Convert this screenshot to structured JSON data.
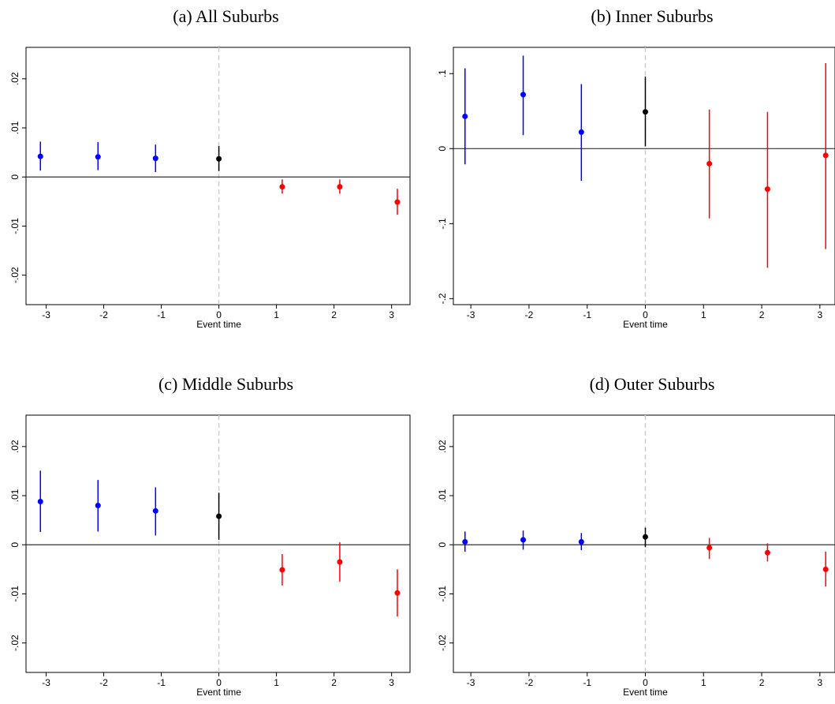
{
  "chart_data": [
    {
      "type": "errorbar",
      "title": "(a) All Suburbs",
      "x_label": "Event time",
      "x": [
        -3.1,
        -2.1,
        -1.1,
        0,
        1.1,
        2.1,
        3.1
      ],
      "values": [
        0.0042,
        0.0041,
        0.0038,
        0.0037,
        -0.002,
        -0.002,
        -0.0051
      ],
      "ci_low": [
        0.0013,
        0.0014,
        0.001,
        0.0012,
        -0.0034,
        -0.0034,
        -0.0077
      ],
      "ci_high": [
        0.0072,
        0.0071,
        0.0066,
        0.0063,
        -0.0005,
        -0.0005,
        -0.0024
      ],
      "colors": [
        "#0000ff",
        "#0000ff",
        "#0000ff",
        "#000000",
        "#ff0000",
        "#ff0000",
        "#ff0000"
      ],
      "xlim": [
        -3.35,
        3.32
      ],
      "xticks": [
        -3,
        -2,
        -1,
        0,
        1,
        2,
        3
      ],
      "ylim": [
        -0.026,
        0.0264
      ],
      "yticks": [
        {
          "value": -0.02,
          "label": "-.02"
        },
        {
          "value": -0.01,
          "label": "-.01"
        },
        0,
        {
          "value": 0.01,
          "label": ".01"
        },
        {
          "value": 0.02,
          "label": ".02"
        }
      ],
      "hline": 0,
      "vline": 0
    },
    {
      "type": "errorbar",
      "title": "(b) Inner Suburbs",
      "x_label": "Event time",
      "x": [
        -3.1,
        -2.1,
        -1.1,
        0,
        1.1,
        2.1,
        3.1
      ],
      "values": [
        0.043,
        0.072,
        0.022,
        0.049,
        -0.02,
        -0.054,
        -0.009
      ],
      "ci_low": [
        -0.021,
        0.018,
        -0.043,
        0.003,
        -0.093,
        -0.159,
        -0.134
      ],
      "ci_high": [
        0.107,
        0.124,
        0.086,
        0.096,
        0.052,
        0.049,
        0.114
      ],
      "colors": [
        "#0000ff",
        "#0000ff",
        "#0000ff",
        "#000000",
        "#ff0000",
        "#ff0000",
        "#ff0000"
      ],
      "xlim": [
        -3.3,
        3.26
      ],
      "xticks": [
        -3,
        -2,
        -1,
        0,
        1,
        2,
        3
      ],
      "ylim": [
        -0.208,
        0.135
      ],
      "yticks": [
        {
          "value": -0.2,
          "label": "-.2"
        },
        {
          "value": -0.1,
          "label": "-.1"
        },
        0,
        {
          "value": 0.1,
          "label": ".1"
        }
      ],
      "hline": 0,
      "vline": 0
    },
    {
      "type": "errorbar",
      "title": "(c) Middle Suburbs",
      "x_label": "Event time",
      "x": [
        -3.1,
        -2.1,
        -1.1,
        0,
        1.1,
        2.1,
        3.1
      ],
      "values": [
        0.0088,
        0.008,
        0.0069,
        0.0058,
        -0.0051,
        -0.0035,
        -0.0098
      ],
      "ci_low": [
        0.0026,
        0.0027,
        0.0019,
        0.001,
        -0.0083,
        -0.0075,
        -0.0146
      ],
      "ci_high": [
        0.0151,
        0.0132,
        0.0117,
        0.0106,
        -0.0019,
        0.0005,
        -0.005
      ],
      "colors": [
        "#0000ff",
        "#0000ff",
        "#0000ff",
        "#000000",
        "#ff0000",
        "#ff0000",
        "#ff0000"
      ],
      "xlim": [
        -3.35,
        3.32
      ],
      "xticks": [
        -3,
        -2,
        -1,
        0,
        1,
        2,
        3
      ],
      "ylim": [
        -0.026,
        0.0264
      ],
      "yticks": [
        {
          "value": -0.02,
          "label": "-.02"
        },
        {
          "value": -0.01,
          "label": "-.01"
        },
        0,
        {
          "value": 0.01,
          "label": ".01"
        },
        {
          "value": 0.02,
          "label": ".02"
        }
      ],
      "hline": 0,
      "vline": 0
    },
    {
      "type": "errorbar",
      "title": "(d) Outer Suburbs",
      "x_label": "Event time",
      "x": [
        -3.1,
        -2.1,
        -1.1,
        0,
        1.1,
        2.1,
        3.1
      ],
      "values": [
        0.0006,
        0.001,
        0.0006,
        0.0016,
        -0.0006,
        -0.0016,
        -0.005
      ],
      "ci_low": [
        -0.0014,
        -0.001,
        -0.0011,
        -0.0005,
        -0.0029,
        -0.0034,
        -0.0085
      ],
      "ci_high": [
        0.0027,
        0.0029,
        0.0024,
        0.0035,
        0.0014,
        0.0003,
        -0.0014
      ],
      "colors": [
        "#0000ff",
        "#0000ff",
        "#0000ff",
        "#000000",
        "#ff0000",
        "#ff0000",
        "#ff0000"
      ],
      "xlim": [
        -3.3,
        3.26
      ],
      "xticks": [
        -3,
        -2,
        -1,
        0,
        1,
        2,
        3
      ],
      "ylim": [
        -0.026,
        0.0264
      ],
      "yticks": [
        {
          "value": -0.02,
          "label": "-.02"
        },
        {
          "value": -0.01,
          "label": "-.01"
        },
        0,
        {
          "value": 0.01,
          "label": ".01"
        },
        {
          "value": 0.02,
          "label": ".02"
        }
      ],
      "hline": 0,
      "vline": 0
    }
  ]
}
